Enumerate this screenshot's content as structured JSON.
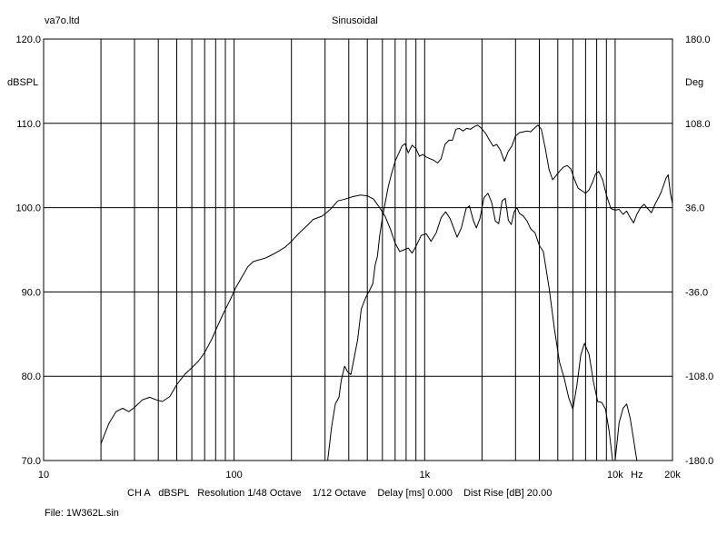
{
  "header": {
    "left": "va7o.ltd",
    "center": "Sinusoidal"
  },
  "footer": {
    "info": "CH A   dBSPL   Resolution 1/48 Octave    1/12 Octave    Delay [ms] 0.000    Dist Rise [dB] 20.00",
    "file": "File: 1W362L.sin"
  },
  "chart_data": {
    "type": "line",
    "xscale": "log",
    "xlim": [
      10,
      20000
    ],
    "x_tick_labels": [
      "10",
      "100",
      "1k",
      "10k",
      "Hz",
      "20k"
    ],
    "ylabel_left": "dBSPL",
    "ylim_left": [
      70,
      120
    ],
    "y_left_ticks": [
      "120.0",
      "110.0",
      "100.0",
      "90.0",
      "80.0",
      "70.0"
    ],
    "ylabel_right": "Deg",
    "ylim_right": [
      -180,
      180
    ],
    "y_right_ticks": [
      "180.0",
      "108.0",
      "36.0",
      "-36.0",
      "-108.0",
      "-180.0"
    ],
    "grid": true,
    "series": [
      {
        "axis": "left",
        "color": "#000000",
        "points": [
          [
            20,
            72.0
          ],
          [
            22,
            74.4
          ],
          [
            24,
            75.8
          ],
          [
            26,
            76.2
          ],
          [
            28,
            75.8
          ],
          [
            30,
            76.3
          ],
          [
            33,
            77.2
          ],
          [
            36,
            77.5
          ],
          [
            39,
            77.2
          ],
          [
            42,
            77.0
          ],
          [
            46,
            77.6
          ],
          [
            50,
            79.0
          ],
          [
            55,
            80.2
          ],
          [
            60,
            81.0
          ],
          [
            65,
            81.8
          ],
          [
            70,
            82.8
          ],
          [
            76,
            84.3
          ],
          [
            82,
            86.0
          ],
          [
            88,
            87.5
          ],
          [
            95,
            89.0
          ],
          [
            102,
            90.5
          ],
          [
            110,
            91.8
          ],
          [
            118,
            93.0
          ],
          [
            126,
            93.6
          ],
          [
            135,
            93.8
          ],
          [
            145,
            94.0
          ],
          [
            155,
            94.3
          ],
          [
            170,
            94.8
          ],
          [
            185,
            95.3
          ],
          [
            200,
            96.0
          ],
          [
            220,
            97.0
          ],
          [
            240,
            97.8
          ],
          [
            260,
            98.6
          ],
          [
            290,
            99.0
          ],
          [
            320,
            99.8
          ],
          [
            350,
            100.8
          ],
          [
            380,
            101.0
          ],
          [
            420,
            101.3
          ],
          [
            460,
            101.5
          ],
          [
            500,
            101.4
          ],
          [
            540,
            101.0
          ],
          [
            580,
            100.0
          ],
          [
            620,
            99.0
          ],
          [
            660,
            97.5
          ],
          [
            700,
            95.8
          ],
          [
            740,
            94.8
          ],
          [
            780,
            95.0
          ],
          [
            820,
            95.2
          ],
          [
            860,
            94.6
          ],
          [
            900,
            95.4
          ],
          [
            960,
            96.7
          ],
          [
            1020,
            96.9
          ],
          [
            1080,
            96.0
          ],
          [
            1150,
            97.0
          ],
          [
            1220,
            98.8
          ],
          [
            1290,
            99.5
          ],
          [
            1360,
            98.7
          ],
          [
            1420,
            97.6
          ],
          [
            1480,
            96.5
          ],
          [
            1560,
            97.6
          ],
          [
            1650,
            99.9
          ],
          [
            1720,
            100.2
          ],
          [
            1800,
            98.5
          ],
          [
            1870,
            97.6
          ],
          [
            1950,
            98.7
          ],
          [
            2050,
            101.2
          ],
          [
            2150,
            101.7
          ],
          [
            2250,
            100.6
          ],
          [
            2350,
            98.4
          ],
          [
            2450,
            98.1
          ],
          [
            2550,
            100.8
          ],
          [
            2650,
            101.1
          ],
          [
            2750,
            98.5
          ],
          [
            2850,
            98.0
          ],
          [
            2950,
            99.5
          ],
          [
            3050,
            100.0
          ],
          [
            3150,
            99.3
          ],
          [
            3300,
            99.0
          ],
          [
            3450,
            98.4
          ],
          [
            3600,
            97.5
          ],
          [
            3800,
            97.0
          ],
          [
            4000,
            95.5
          ],
          [
            4200,
            94.8
          ],
          [
            4500,
            90.5
          ],
          [
            4800,
            85.6
          ],
          [
            5100,
            81.7
          ],
          [
            5400,
            79.8
          ],
          [
            5700,
            77.5
          ],
          [
            6000,
            76.1
          ],
          [
            6300,
            78.9
          ],
          [
            6600,
            82.5
          ],
          [
            6900,
            83.9
          ],
          [
            7300,
            82.6
          ],
          [
            7700,
            79.3
          ],
          [
            8100,
            77.0
          ],
          [
            8500,
            76.9
          ],
          [
            8900,
            76.1
          ],
          [
            9300,
            73.5
          ],
          [
            9700,
            70.0
          ]
        ]
      },
      {
        "axis": "left",
        "color": "#000000",
        "points": [
          [
            310,
            70.0
          ],
          [
            325,
            74.0
          ],
          [
            340,
            76.7
          ],
          [
            355,
            77.5
          ],
          [
            365,
            79.5
          ],
          [
            380,
            81.2
          ],
          [
            395,
            80.5
          ],
          [
            410,
            80.2
          ],
          [
            425,
            82.0
          ],
          [
            445,
            84.3
          ],
          [
            465,
            88.0
          ],
          [
            490,
            89.3
          ],
          [
            515,
            90.2
          ],
          [
            535,
            91.0
          ],
          [
            550,
            93.2
          ],
          [
            565,
            94.2
          ],
          [
            580,
            96.6
          ],
          [
            600,
            98.8
          ],
          [
            620,
            100.5
          ],
          [
            645,
            102.5
          ],
          [
            670,
            104.0
          ],
          [
            700,
            105.5
          ],
          [
            730,
            106.4
          ],
          [
            760,
            107.3
          ],
          [
            790,
            107.6
          ],
          [
            820,
            106.5
          ],
          [
            860,
            107.4
          ],
          [
            900,
            107.0
          ],
          [
            940,
            106.1
          ],
          [
            980,
            106.3
          ],
          [
            1020,
            106.0
          ],
          [
            1070,
            105.8
          ],
          [
            1120,
            105.6
          ],
          [
            1170,
            105.3
          ],
          [
            1220,
            105.8
          ],
          [
            1280,
            107.5
          ],
          [
            1340,
            108.0
          ],
          [
            1400,
            108.0
          ],
          [
            1460,
            109.3
          ],
          [
            1520,
            109.4
          ],
          [
            1590,
            109.1
          ],
          [
            1660,
            109.4
          ],
          [
            1740,
            109.3
          ],
          [
            1820,
            109.6
          ],
          [
            1900,
            109.8
          ],
          [
            1990,
            109.4
          ],
          [
            2090,
            108.8
          ],
          [
            2190,
            108.0
          ],
          [
            2290,
            107.3
          ],
          [
            2390,
            107.5
          ],
          [
            2500,
            106.8
          ],
          [
            2620,
            105.5
          ],
          [
            2740,
            106.6
          ],
          [
            2870,
            107.3
          ],
          [
            3000,
            108.5
          ],
          [
            3150,
            108.9
          ],
          [
            3300,
            109.0
          ],
          [
            3450,
            109.1
          ],
          [
            3600,
            109.0
          ],
          [
            3760,
            109.4
          ],
          [
            3930,
            109.8
          ],
          [
            4100,
            109.3
          ],
          [
            4300,
            107.0
          ],
          [
            4500,
            104.5
          ],
          [
            4700,
            103.3
          ],
          [
            4900,
            103.8
          ],
          [
            5100,
            104.3
          ],
          [
            5350,
            104.8
          ],
          [
            5600,
            105.0
          ],
          [
            5850,
            104.6
          ],
          [
            6100,
            103.4
          ],
          [
            6400,
            102.3
          ],
          [
            6700,
            102.0
          ],
          [
            7000,
            101.7
          ],
          [
            7300,
            102.1
          ],
          [
            7600,
            103.0
          ],
          [
            7900,
            104.0
          ],
          [
            8200,
            104.3
          ],
          [
            8600,
            103.3
          ],
          [
            9000,
            101.5
          ],
          [
            9500,
            99.9
          ],
          [
            10000,
            99.7
          ],
          [
            10500,
            99.8
          ],
          [
            11000,
            99.2
          ],
          [
            11500,
            99.6
          ],
          [
            12000,
            98.8
          ],
          [
            12500,
            98.2
          ],
          [
            13000,
            99.2
          ],
          [
            13600,
            100.0
          ],
          [
            14200,
            100.4
          ],
          [
            14800,
            99.9
          ],
          [
            15500,
            99.4
          ],
          [
            16200,
            100.4
          ],
          [
            16900,
            101.2
          ],
          [
            17500,
            101.9
          ],
          [
            18000,
            102.7
          ],
          [
            18500,
            103.5
          ],
          [
            19000,
            103.9
          ],
          [
            19500,
            101.7
          ],
          [
            20000,
            100.5
          ]
        ]
      },
      {
        "axis": "left",
        "color": "#000000",
        "points": [
          [
            10000,
            70.0
          ],
          [
            10500,
            74.5
          ],
          [
            11000,
            76.2
          ],
          [
            11500,
            76.7
          ],
          [
            12000,
            75.0
          ],
          [
            12500,
            72.5
          ],
          [
            13000,
            70.0
          ]
        ]
      }
    ]
  }
}
